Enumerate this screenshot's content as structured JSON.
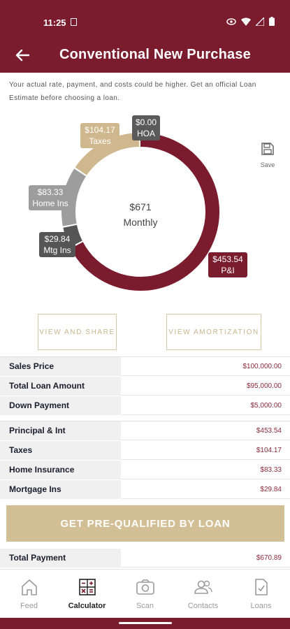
{
  "status": {
    "time": "11:25"
  },
  "appbar": {
    "title": "Conventional New Purchase"
  },
  "disclaimer": "Your actual rate, payment, and costs could be higher. Get an official Loan Estimate before choosing a loan.",
  "save_label": "Save",
  "chart": {
    "center_amount": "$671",
    "center_label": "Monthly",
    "segments": [
      {
        "name": "P&I",
        "value": 453.54,
        "color": "#7b1c2e",
        "amount": "$453.54",
        "label": "P&I"
      },
      {
        "name": "Mtg Ins",
        "value": 29.84,
        "color": "#555555",
        "amount": "$29.84",
        "label": "Mtg Ins"
      },
      {
        "name": "Home Ins",
        "value": 83.33,
        "color": "#9d9d9d",
        "amount": "$83.33",
        "label": "Home Ins"
      },
      {
        "name": "Taxes",
        "value": 104.17,
        "color": "#cfb88e",
        "amount": "$104.17",
        "label": "Taxes"
      },
      {
        "name": "HOA",
        "value": 0.0,
        "color": "#5a5a5a",
        "amount": "$0.00",
        "label": "HOA"
      }
    ]
  },
  "buttons": {
    "share": "VIEW AND SHARE",
    "amortization": "VIEW AMORTIZATION",
    "prequalify": "GET PRE-QUALIFIED BY LOAN"
  },
  "loan_rows": [
    {
      "label": "Sales Price",
      "value": "$100,000.00"
    },
    {
      "label": "Total Loan Amount",
      "value": "$95,000.00"
    },
    {
      "label": "Down Payment",
      "value": "$5,000.00"
    }
  ],
  "payment_rows": [
    {
      "label": "Principal & Int",
      "value": "$453.54"
    },
    {
      "label": "Taxes",
      "value": "$104.17"
    },
    {
      "label": "Home Insurance",
      "value": "$83.33"
    },
    {
      "label": "Mortgage Ins",
      "value": "$29.84"
    }
  ],
  "total_row": {
    "label": "Total Payment",
    "value": "$670.89"
  },
  "nav": [
    {
      "label": "Feed",
      "icon": "home-icon"
    },
    {
      "label": "Calculator",
      "icon": "calculator-icon"
    },
    {
      "label": "Scan",
      "icon": "camera-icon"
    },
    {
      "label": "Contacts",
      "icon": "contacts-icon"
    },
    {
      "label": "Loans",
      "icon": "document-icon"
    }
  ],
  "colors": {
    "brand": "#7b1c2e",
    "gold": "#d3bf95",
    "value_text": "#8a2a3c"
  }
}
